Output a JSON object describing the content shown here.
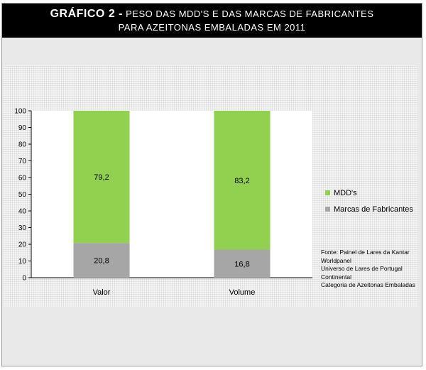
{
  "header": {
    "title_bold": "GRÁFICO 2 -",
    "title_rest": "PESO DAS MDD'S E DAS MARCAS DE FABRICANTES",
    "subtitle": "PARA AZEITONAS EMBALADAS EM 2011"
  },
  "chart_data": {
    "type": "bar",
    "stacked": true,
    "categories": [
      "Valor",
      "Volume"
    ],
    "series": [
      {
        "name": "Marcas de Fabricantes",
        "values": [
          20.8,
          16.8
        ],
        "labels": [
          "20,8",
          "16,8"
        ],
        "color": "#a6a6a6"
      },
      {
        "name": "MDD's",
        "values": [
          79.2,
          83.2
        ],
        "labels": [
          "79,2",
          "83,2"
        ],
        "color": "#92d050"
      }
    ],
    "ylim": [
      0,
      100
    ],
    "yticks": [
      0,
      10,
      20,
      30,
      40,
      50,
      60,
      70,
      80,
      90,
      100
    ],
    "legend_order": [
      "MDD's",
      "Marcas de Fabricantes"
    ],
    "legend_position": "right",
    "grid": false
  },
  "source": {
    "lines": [
      "Fonte: Painel de Lares da Kantar",
      "Worldpanel",
      "Universo de Lares de Portugal",
      "Continental",
      "Categoria de Azeitonas Embaladas"
    ]
  }
}
